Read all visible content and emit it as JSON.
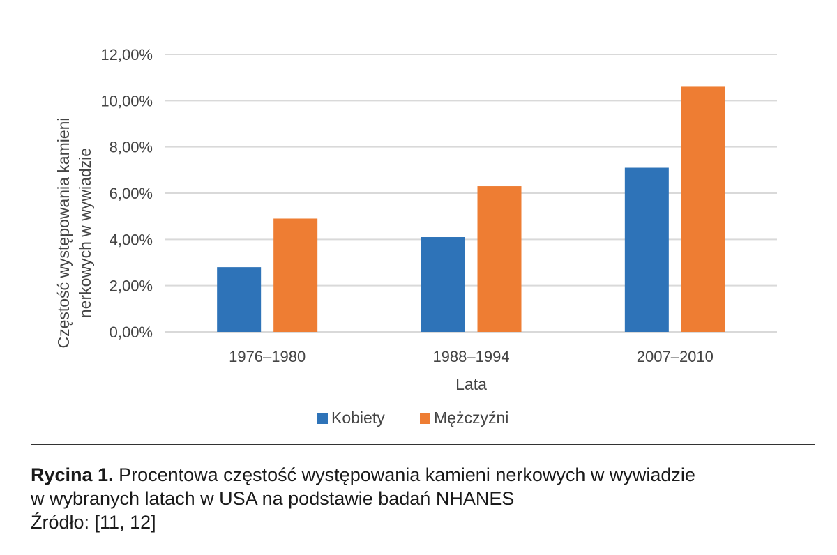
{
  "chart_data": {
    "type": "bar",
    "categories": [
      "1976–1980",
      "1988–1994",
      "2007–2010"
    ],
    "series": [
      {
        "name": "Kobiety",
        "color": "#2e73b8",
        "values": [
          2.8,
          4.1,
          7.1
        ]
      },
      {
        "name": "Mężczyźni",
        "color": "#ee7d33",
        "values": [
          4.9,
          6.3,
          10.6
        ]
      }
    ],
    "ylabel_lines": [
      "Częstość występowania kamieni",
      "nerkowych w wywiadzie"
    ],
    "xlabel": "Lata",
    "ylim": [
      0,
      12
    ],
    "yticks": [
      0,
      2,
      4,
      6,
      8,
      10,
      12
    ],
    "ytick_labels": [
      "0,00%",
      "2,00%",
      "4,00%",
      "6,00%",
      "8,00%",
      "10,00%",
      "12,00%"
    ],
    "grid": true,
    "legend_position": "bottom"
  },
  "caption": {
    "label": "Rycina 1.",
    "text": " Procentowa częstość występowania kamieni nerkowych w wywiadzie",
    "line2": "w wybranych latach w USA na podstawie badań NHANES",
    "source": "Źródło: [11, 12]"
  }
}
